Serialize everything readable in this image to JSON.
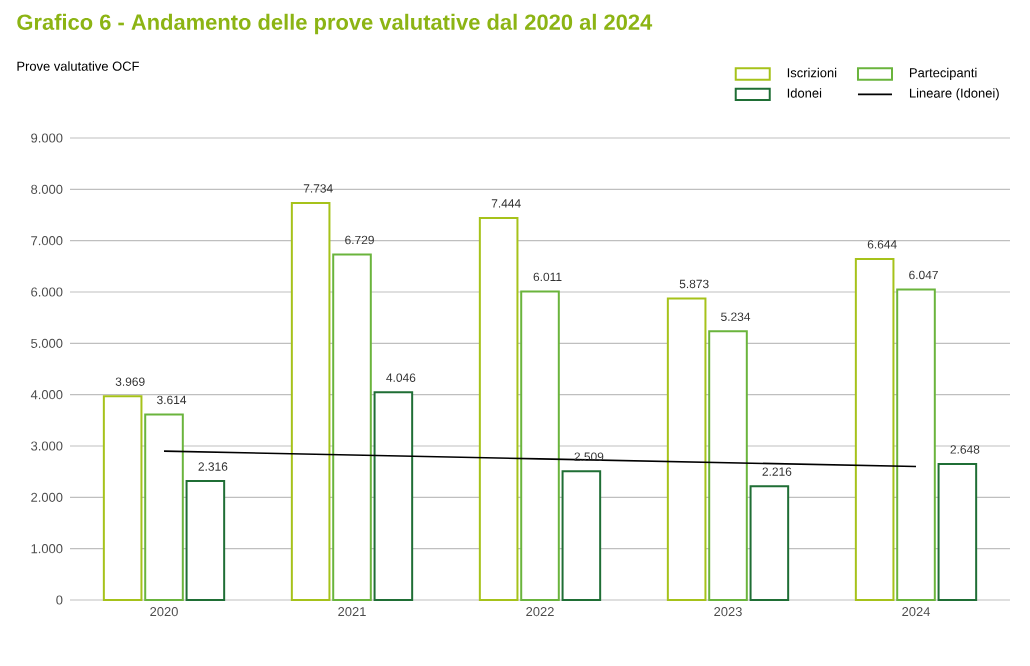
{
  "chart_data": {
    "type": "bar",
    "title": "**Grafico 6** - Andamento delle prove valutative dal 2020 al 2024",
    "subtitle": "Prove valutative OCF",
    "categories": [
      "2020",
      "2021",
      "2022",
      "2023",
      "2024"
    ],
    "series": [
      {
        "name": "Iscrizioni",
        "color": "#a6c21a",
        "values": [
          3969,
          7734,
          7444,
          5873,
          6644
        ],
        "value_labels": [
          "3.969",
          "7.734",
          "7.444",
          "5.873",
          "6.644"
        ]
      },
      {
        "name": "Partecipanti",
        "color": "#6ab43c",
        "values": [
          3614,
          6729,
          6011,
          5234,
          6047
        ],
        "value_labels": [
          "3.614",
          "6.729",
          "6.011",
          "5.234",
          "6.047"
        ]
      },
      {
        "name": "Idonei",
        "color": "#1f6e35",
        "values": [
          2316,
          4046,
          2509,
          2216,
          2648
        ],
        "value_labels": [
          "2.316",
          "4.046",
          "2.509",
          "2.216",
          "2.648"
        ]
      },
      {
        "name": "Lineare (Idonei)",
        "type": "line",
        "color": "#000000",
        "values": [
          2900,
          2825,
          2750,
          2675,
          2600
        ]
      }
    ],
    "ylim": [
      0,
      9000
    ],
    "yticks": [
      {
        "value": 0,
        "label": "0"
      },
      {
        "value": 1000,
        "label": "1.000"
      },
      {
        "value": 2000,
        "label": "2.000"
      },
      {
        "value": 3000,
        "label": "3.000"
      },
      {
        "value": 4000,
        "label": "4.000"
      },
      {
        "value": 5000,
        "label": "5.000"
      },
      {
        "value": 6000,
        "label": "6.000"
      },
      {
        "value": 7000,
        "label": "7.000"
      },
      {
        "value": 8000,
        "label": "8.000"
      },
      {
        "value": 9000,
        "label": "9.000"
      }
    ],
    "grid": "y",
    "legend": "top right",
    "marker": "none"
  }
}
